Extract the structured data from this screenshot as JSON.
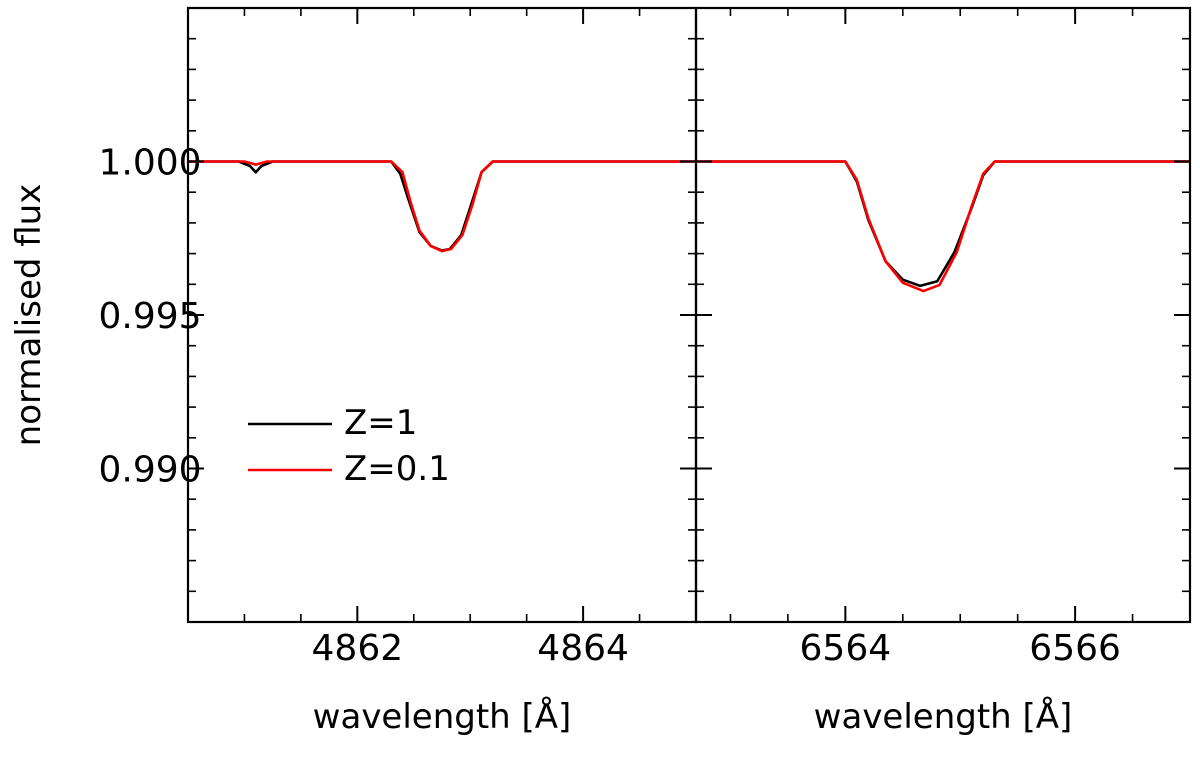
{
  "chart_data": {
    "type": "line",
    "ylabel": "normalised flux",
    "ylim": [
      0.985,
      1.005
    ],
    "yticks": [
      0.99,
      0.995,
      1.0
    ],
    "ytick_labels": [
      "0.990",
      "0.995",
      "1.000"
    ],
    "legend": {
      "placement": "lower-left of left panel",
      "entries": [
        {
          "label": "Z=1",
          "color": "#000000"
        },
        {
          "label": "Z=0.1",
          "color": "#ff0000"
        }
      ]
    },
    "panels": [
      {
        "xlabel": "wavelength [Å]",
        "xlim": [
          4860.5,
          4865.0
        ],
        "xticks": [
          4862,
          4864
        ],
        "xtick_labels": [
          "4862",
          "4864"
        ],
        "series": [
          {
            "name": "Z=1",
            "color": "#000000",
            "x": [
              4860.5,
              4860.95,
              4861.05,
              4861.1,
              4861.15,
              4861.25,
              4861.35,
              4862.3,
              4862.38,
              4862.45,
              4862.55,
              4862.65,
              4862.75,
              4862.82,
              4862.92,
              4863.0,
              4863.1,
              4863.2,
              4865.0
            ],
            "y": [
              1.0,
              1.0,
              0.99985,
              0.99965,
              0.99985,
              1.0,
              1.0,
              1.0,
              0.9996,
              0.9988,
              0.9977,
              0.99725,
              0.9971,
              0.99715,
              0.9976,
              0.9985,
              0.99965,
              1.0,
              1.0
            ]
          },
          {
            "name": "Z=0.1",
            "color": "#ff0000",
            "x": [
              4860.5,
              4861.0,
              4861.1,
              4861.2,
              4862.3,
              4862.4,
              4862.47,
              4862.55,
              4862.65,
              4862.75,
              4862.83,
              4862.93,
              4863.02,
              4863.1,
              4863.2,
              4865.0
            ],
            "y": [
              1.0,
              1.0,
              0.9999,
              1.0,
              1.0,
              0.99965,
              0.9987,
              0.99775,
              0.99725,
              0.99708,
              0.99715,
              0.9976,
              0.9986,
              0.99965,
              1.0,
              1.0
            ]
          }
        ]
      },
      {
        "xlabel": "wavelength [Å]",
        "xlim": [
          6562.7,
          6567.0
        ],
        "xticks": [
          6564,
          6566
        ],
        "xtick_labels": [
          "6564",
          "6566"
        ],
        "series": [
          {
            "name": "Z=1",
            "color": "#000000",
            "x": [
              6562.7,
              6564.0,
              6564.1,
              6564.2,
              6564.35,
              6564.5,
              6564.65,
              6564.8,
              6564.95,
              6565.1,
              6565.2,
              6565.3,
              6567.0
            ],
            "y": [
              1.0,
              1.0,
              0.99935,
              0.9981,
              0.99675,
              0.99615,
              0.99595,
              0.9961,
              0.99705,
              0.9985,
              0.99955,
              1.0,
              1.0
            ]
          },
          {
            "name": "Z=0.1",
            "color": "#ff0000",
            "x": [
              6562.7,
              6564.0,
              6564.1,
              6564.2,
              6564.35,
              6564.5,
              6564.68,
              6564.82,
              6564.97,
              6565.1,
              6565.2,
              6565.3,
              6567.0
            ],
            "y": [
              1.0,
              1.0,
              0.9994,
              0.99815,
              0.99675,
              0.99605,
              0.99578,
              0.99598,
              0.99705,
              0.99855,
              0.9996,
              1.0,
              1.0
            ]
          }
        ]
      }
    ]
  }
}
